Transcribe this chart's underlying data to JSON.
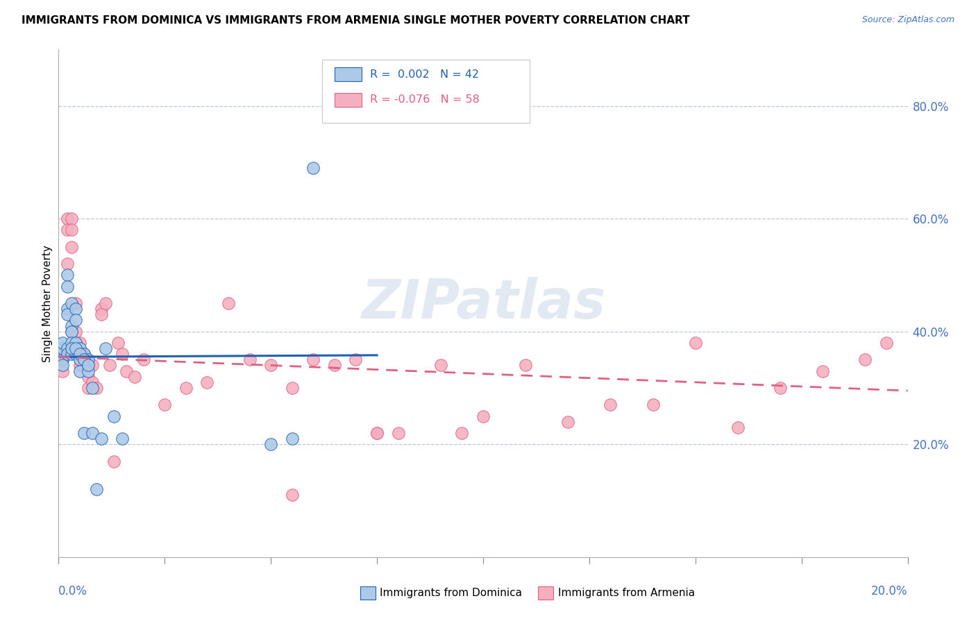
{
  "title": "IMMIGRANTS FROM DOMINICA VS IMMIGRANTS FROM ARMENIA SINGLE MOTHER POVERTY CORRELATION CHART",
  "source": "Source: ZipAtlas.com",
  "ylabel": "Single Mother Poverty",
  "ytick_labels": [
    "20.0%",
    "40.0%",
    "60.0%",
    "80.0%"
  ],
  "ytick_values": [
    0.2,
    0.4,
    0.6,
    0.8
  ],
  "xlim": [
    0.0,
    0.2
  ],
  "ylim": [
    0.0,
    0.9
  ],
  "dominica_color": "#adc9e8",
  "armenia_color": "#f5afc0",
  "dominica_line_color": "#2060b0",
  "armenia_line_color": "#e06080",
  "watermark": "ZIPatlas",
  "dominica_x": [
    0.001,
    0.001,
    0.001,
    0.001,
    0.001,
    0.002,
    0.002,
    0.002,
    0.002,
    0.002,
    0.003,
    0.003,
    0.003,
    0.003,
    0.003,
    0.004,
    0.004,
    0.004,
    0.004,
    0.005,
    0.005,
    0.005,
    0.006,
    0.006,
    0.007,
    0.007,
    0.008,
    0.009,
    0.01,
    0.011,
    0.013,
    0.015,
    0.05,
    0.055,
    0.002,
    0.003,
    0.004,
    0.005,
    0.006,
    0.007,
    0.008,
    0.06
  ],
  "dominica_y": [
    0.36,
    0.35,
    0.37,
    0.38,
    0.34,
    0.5,
    0.37,
    0.36,
    0.44,
    0.43,
    0.45,
    0.41,
    0.4,
    0.38,
    0.36,
    0.44,
    0.42,
    0.38,
    0.36,
    0.37,
    0.35,
    0.33,
    0.36,
    0.22,
    0.35,
    0.33,
    0.22,
    0.12,
    0.21,
    0.37,
    0.25,
    0.21,
    0.2,
    0.21,
    0.48,
    0.37,
    0.37,
    0.36,
    0.35,
    0.34,
    0.3,
    0.69
  ],
  "armenia_x": [
    0.001,
    0.001,
    0.002,
    0.002,
    0.002,
    0.003,
    0.003,
    0.003,
    0.003,
    0.004,
    0.004,
    0.004,
    0.005,
    0.005,
    0.005,
    0.006,
    0.006,
    0.007,
    0.007,
    0.008,
    0.008,
    0.009,
    0.01,
    0.01,
    0.011,
    0.012,
    0.013,
    0.014,
    0.015,
    0.016,
    0.018,
    0.02,
    0.025,
    0.03,
    0.035,
    0.04,
    0.045,
    0.05,
    0.055,
    0.06,
    0.065,
    0.07,
    0.075,
    0.08,
    0.09,
    0.1,
    0.11,
    0.12,
    0.13,
    0.14,
    0.15,
    0.16,
    0.17,
    0.18,
    0.19,
    0.055,
    0.075,
    0.095,
    0.195
  ],
  "armenia_y": [
    0.35,
    0.33,
    0.6,
    0.58,
    0.52,
    0.6,
    0.58,
    0.55,
    0.4,
    0.45,
    0.4,
    0.38,
    0.38,
    0.36,
    0.34,
    0.36,
    0.34,
    0.32,
    0.3,
    0.34,
    0.31,
    0.3,
    0.44,
    0.43,
    0.45,
    0.34,
    0.17,
    0.38,
    0.36,
    0.33,
    0.32,
    0.35,
    0.27,
    0.3,
    0.31,
    0.45,
    0.35,
    0.34,
    0.11,
    0.35,
    0.34,
    0.35,
    0.22,
    0.22,
    0.34,
    0.25,
    0.34,
    0.24,
    0.27,
    0.27,
    0.38,
    0.23,
    0.3,
    0.33,
    0.35,
    0.3,
    0.22,
    0.22,
    0.38
  ],
  "dom_trend_x": [
    0.0,
    0.075
  ],
  "dom_trend_y": [
    0.355,
    0.358
  ],
  "arm_trend_x": [
    0.0,
    0.2
  ],
  "arm_trend_y": [
    0.355,
    0.295
  ]
}
